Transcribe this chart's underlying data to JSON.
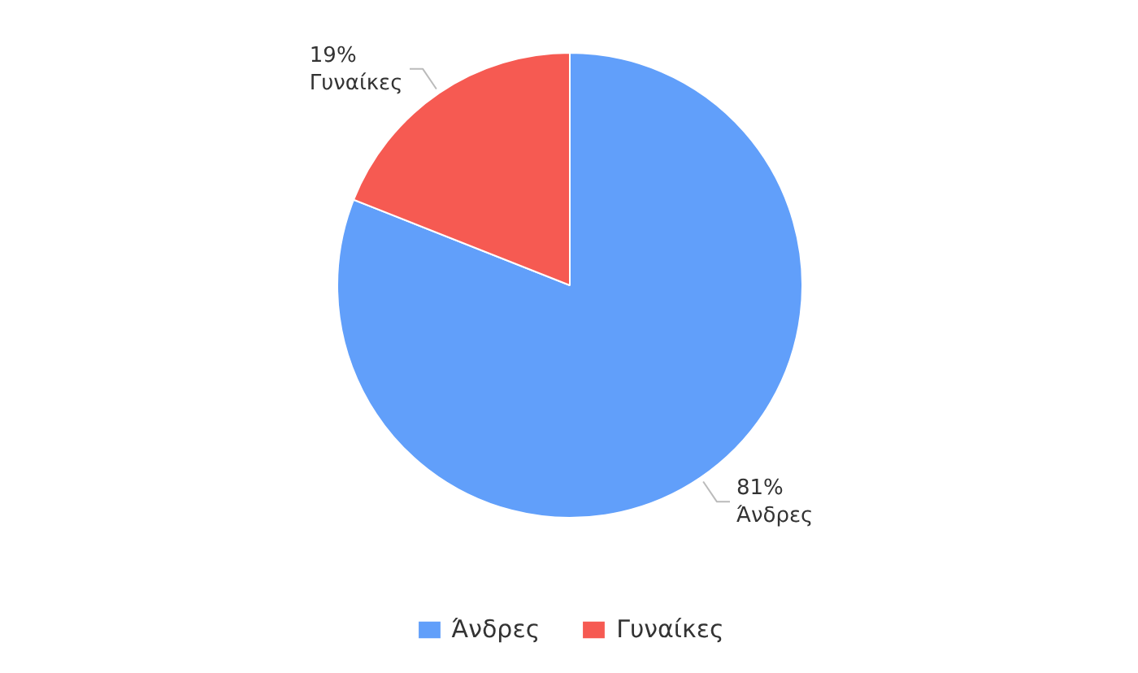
{
  "chart_data": {
    "type": "pie",
    "categories": [
      "Άνδρες",
      "Γυναίκες"
    ],
    "values": [
      81,
      19
    ],
    "value_labels": [
      "81%",
      "19%"
    ],
    "colors": [
      "#619ffa",
      "#f65a52"
    ],
    "legend": "bottom"
  }
}
